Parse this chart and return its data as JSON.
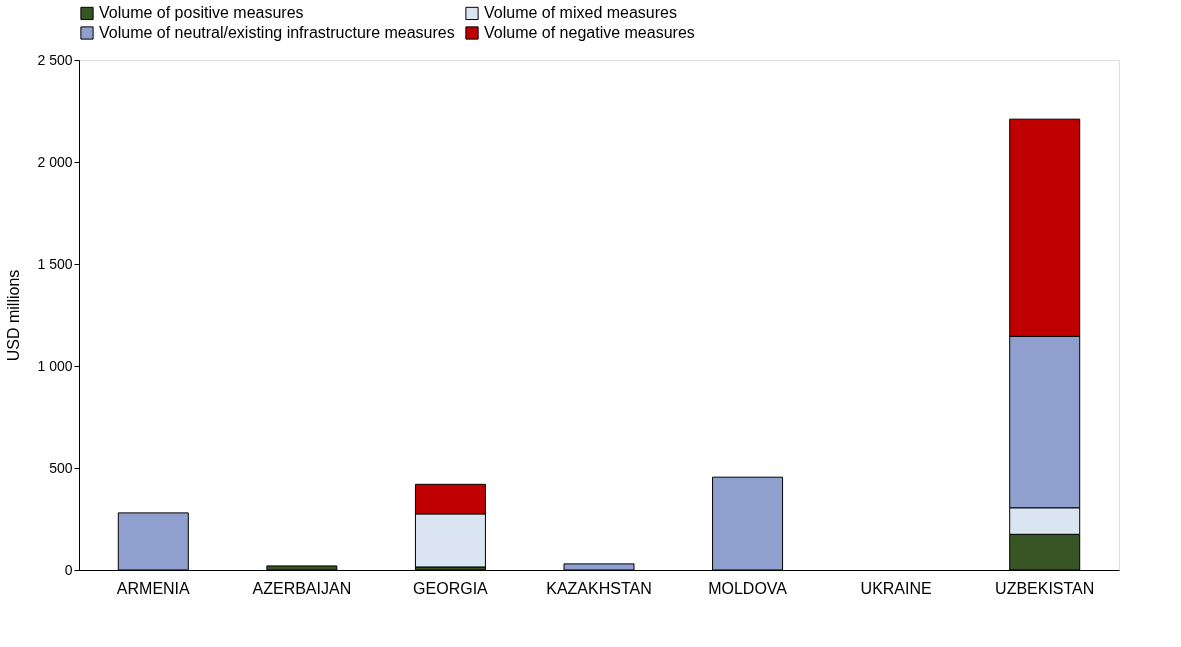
{
  "chart_data": {
    "type": "bar",
    "stacked": true,
    "ylabel": "USD millions",
    "categories": [
      "ARMENIA",
      "AZERBAIJAN",
      "GEORGIA",
      "KAZAKHSTAN",
      "MOLDOVA",
      "UKRAINE",
      "UZBEKISTAN"
    ],
    "series": [
      {
        "name": "Volume of positive measures",
        "color": "#375623",
        "values": [
          null,
          20,
          15,
          null,
          null,
          null,
          175
        ]
      },
      {
        "name": "Volume of mixed measures",
        "color": "#dbe5f1",
        "values": [
          null,
          null,
          260,
          null,
          null,
          null,
          130
        ]
      },
      {
        "name": "Volume of neutral/existing infrastructure measures",
        "color": "#8fa0cf",
        "values": [
          280,
          null,
          null,
          30,
          455,
          null,
          840
        ]
      },
      {
        "name": "Volume of negative measures",
        "color": "#c00000",
        "values": [
          null,
          null,
          145,
          null,
          null,
          null,
          1065
        ]
      }
    ],
    "ylim": [
      0,
      2500
    ],
    "yticks": [
      0,
      {
        "value": 500,
        "label": "500"
      },
      {
        "value": 1000,
        "label": "1 000"
      },
      {
        "value": 1500,
        "label": "1 500"
      },
      {
        "value": 2000,
        "label": "2 000"
      },
      {
        "value": 2500,
        "label": "2 500"
      }
    ],
    "grid": false,
    "legend": "top"
  }
}
